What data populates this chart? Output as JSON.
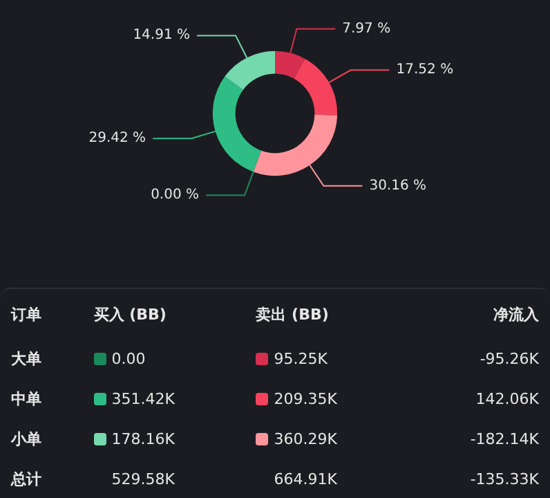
{
  "chart_data": [
    {
      "type": "donut",
      "categories": [
        null,
        null,
        null,
        null,
        null,
        null
      ],
      "values": [
        7.97,
        17.52,
        30.16,
        0.0,
        29.42,
        14.91
      ],
      "value_labels": [
        "7.97 %",
        "17.52 %",
        "30.16 %",
        "0.00 %",
        "29.42 %",
        "14.91 %"
      ],
      "colors": [
        "#d62f4f",
        "#f5435d",
        "#ff959c",
        "#1a8a5c",
        "#2ebd85",
        "#75d9ae"
      ]
    },
    {
      "type": "other",
      "categories": [
        "订单",
        "买入 (BB)",
        "卖出 (BB)",
        "净流入"
      ],
      "y_categories": [
        "大单",
        "中单",
        "小单",
        "总计"
      ],
      "cell_labels": [
        [
          "0.00",
          "95.25K",
          "-95.26K"
        ],
        [
          "351.42K",
          "209.35K",
          "142.06K"
        ],
        [
          "178.16K",
          "360.29K",
          "-182.14K"
        ],
        [
          "529.58K",
          "664.91K",
          "-135.33K"
        ]
      ],
      "colors": [
        [
          "#1a8a5c",
          "#d62f4f",
          null
        ],
        [
          "#2ebd85",
          "#f5435d",
          null
        ],
        [
          "#75d9ae",
          "#ff959c",
          null
        ],
        [
          null,
          null,
          null
        ]
      ]
    }
  ]
}
